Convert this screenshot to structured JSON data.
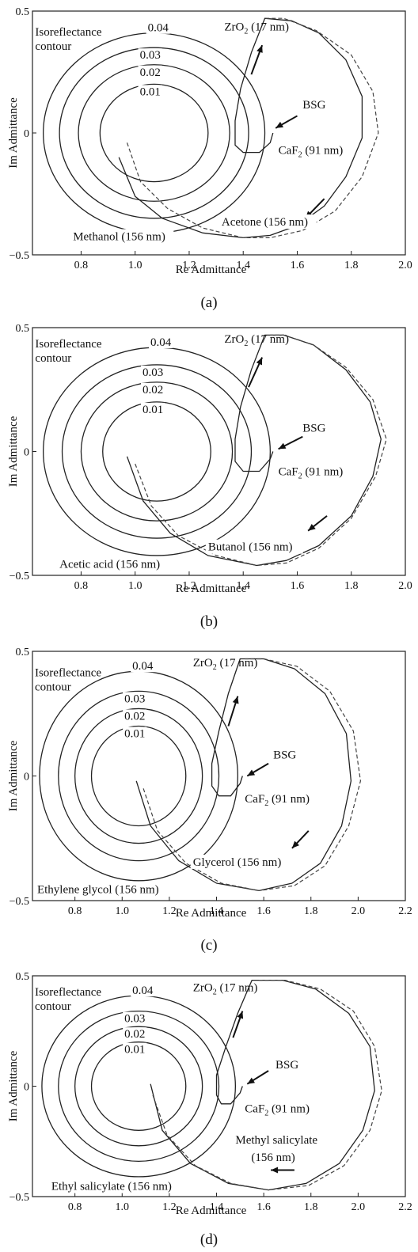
{
  "chart_data": [
    {
      "type": "line",
      "caption": "(a)",
      "xlabel": "Re Admittance",
      "ylabel": "Im Admittance",
      "xlim": [
        0.62,
        2.0
      ],
      "ylim": [
        -0.5,
        0.5
      ],
      "xticks": [
        "0.8",
        "1.0",
        "1.2",
        "1.4",
        "1.6",
        "1.8",
        "2.0"
      ],
      "xtick_values": [
        0.8,
        1.0,
        1.2,
        1.4,
        1.6,
        1.8,
        2.0
      ],
      "yticks": [
        "0.5",
        "0",
        "−0.5"
      ],
      "ytick_values": [
        0.5,
        0,
        -0.5
      ],
      "contours": [
        {
          "label": "0.01",
          "center": [
            1.07,
            0
          ],
          "radius": 0.2
        },
        {
          "label": "0.02",
          "center": [
            1.07,
            0
          ],
          "radius": 0.28
        },
        {
          "label": "0.03",
          "center": [
            1.07,
            0
          ],
          "radius": 0.35
        },
        {
          "label": "0.04",
          "center": [
            1.07,
            0
          ],
          "radius": 0.41
        }
      ],
      "annotations": {
        "isoreflectance_1": "Isoreflectance",
        "isoreflectance_2": "contour",
        "zro2_main": "ZrO",
        "zro2_sub": "2",
        "zro2_rest": " (17 nm)",
        "bsg": "BSG",
        "caf2_main": "CaF",
        "caf2_sub": "2",
        "caf2_rest": " (91 nm)",
        "solvent_inner": "Methanol (156 nm)",
        "solvent_outer": "Acetone (156 nm)"
      },
      "series": [
        {
          "name": "Methanol (156 nm)",
          "style": "solid",
          "points": [
            [
              0.94,
              -0.1
            ],
            [
              1.0,
              -0.26
            ],
            [
              1.1,
              -0.35
            ],
            [
              1.25,
              -0.41
            ],
            [
              1.4,
              -0.43
            ],
            [
              1.5,
              -0.42
            ],
            [
              1.6,
              -0.38
            ],
            [
              1.7,
              -0.3
            ],
            [
              1.78,
              -0.18
            ],
            [
              1.84,
              -0.02
            ],
            [
              1.84,
              0.15
            ],
            [
              1.78,
              0.3
            ],
            [
              1.68,
              0.41
            ],
            [
              1.58,
              0.46
            ],
            [
              1.48,
              0.47
            ],
            [
              1.43,
              0.33
            ],
            [
              1.39,
              0.18
            ],
            [
              1.37,
              0.05
            ],
            [
              1.37,
              -0.05
            ],
            [
              1.4,
              -0.08
            ],
            [
              1.46,
              -0.08
            ],
            [
              1.5,
              -0.04
            ],
            [
              1.51,
              0.0
            ]
          ]
        },
        {
          "name": "Acetone (156 nm)",
          "style": "dashed",
          "points": [
            [
              0.97,
              -0.04
            ],
            [
              1.02,
              -0.2
            ],
            [
              1.12,
              -0.31
            ],
            [
              1.25,
              -0.39
            ],
            [
              1.4,
              -0.43
            ],
            [
              1.5,
              -0.43
            ],
            [
              1.62,
              -0.4
            ],
            [
              1.74,
              -0.32
            ],
            [
              1.84,
              -0.18
            ],
            [
              1.9,
              0.0
            ],
            [
              1.88,
              0.17
            ],
            [
              1.8,
              0.32
            ],
            [
              1.67,
              0.42
            ],
            [
              1.55,
              0.47
            ],
            [
              1.48,
              0.47
            ]
          ]
        }
      ]
    },
    {
      "type": "line",
      "caption": "(b)",
      "xlabel": "Re Admittance",
      "ylabel": "Im Admittance",
      "xlim": [
        0.62,
        2.0
      ],
      "ylim": [
        -0.5,
        0.5
      ],
      "xticks": [
        "0.8",
        "1.0",
        "1.2",
        "1.4",
        "1.6",
        "1.8",
        "2.0"
      ],
      "xtick_values": [
        0.8,
        1.0,
        1.2,
        1.4,
        1.6,
        1.8,
        2.0
      ],
      "yticks": [
        "0.5",
        "0",
        "−0.5"
      ],
      "ytick_values": [
        0.5,
        0,
        -0.5
      ],
      "contours": [
        {
          "label": "0.01",
          "center": [
            1.08,
            0
          ],
          "radius": 0.2
        },
        {
          "label": "0.02",
          "center": [
            1.08,
            0
          ],
          "radius": 0.28
        },
        {
          "label": "0.03",
          "center": [
            1.08,
            0
          ],
          "radius": 0.35
        },
        {
          "label": "0.04",
          "center": [
            1.08,
            0
          ],
          "radius": 0.42
        }
      ],
      "annotations": {
        "isoreflectance_1": "Isoreflectance",
        "isoreflectance_2": "contour",
        "zro2_main": "ZrO",
        "zro2_sub": "2",
        "zro2_rest": " (17 nm)",
        "bsg": "BSG",
        "caf2_main": "CaF",
        "caf2_sub": "2",
        "caf2_rest": " (91 nm)",
        "solvent_inner": "Acetic acid (156 nm)",
        "solvent_outer": "Butanol (156 nm)"
      },
      "series": [
        {
          "name": "Acetic acid (156 nm)",
          "style": "solid",
          "points": [
            [
              0.97,
              -0.02
            ],
            [
              1.03,
              -0.2
            ],
            [
              1.13,
              -0.33
            ],
            [
              1.27,
              -0.42
            ],
            [
              1.45,
              -0.46
            ],
            [
              1.56,
              -0.44
            ],
            [
              1.68,
              -0.38
            ],
            [
              1.8,
              -0.26
            ],
            [
              1.88,
              -0.1
            ],
            [
              1.91,
              0.05
            ],
            [
              1.87,
              0.2
            ],
            [
              1.78,
              0.33
            ],
            [
              1.66,
              0.43
            ],
            [
              1.55,
              0.47
            ],
            [
              1.48,
              0.47
            ],
            [
              1.43,
              0.33
            ],
            [
              1.39,
              0.18
            ],
            [
              1.37,
              0.05
            ],
            [
              1.37,
              -0.04
            ],
            [
              1.4,
              -0.08
            ],
            [
              1.46,
              -0.08
            ],
            [
              1.5,
              -0.03
            ],
            [
              1.51,
              0.0
            ]
          ]
        },
        {
          "name": "Butanol (156 nm)",
          "style": "dashed",
          "points": [
            [
              1.0,
              -0.05
            ],
            [
              1.06,
              -0.22
            ],
            [
              1.16,
              -0.34
            ],
            [
              1.3,
              -0.42
            ],
            [
              1.45,
              -0.46
            ],
            [
              1.56,
              -0.45
            ],
            [
              1.68,
              -0.39
            ],
            [
              1.8,
              -0.27
            ],
            [
              1.89,
              -0.1
            ],
            [
              1.93,
              0.05
            ],
            [
              1.88,
              0.21
            ],
            [
              1.78,
              0.34
            ],
            [
              1.66,
              0.43
            ],
            [
              1.55,
              0.47
            ],
            [
              1.5,
              0.47
            ]
          ]
        }
      ]
    },
    {
      "type": "line",
      "caption": "(c)",
      "xlabel": "Re Admittance",
      "ylabel": "Im Admittance",
      "xlim": [
        0.62,
        2.2
      ],
      "ylim": [
        -0.5,
        0.5
      ],
      "xticks": [
        "0.8",
        "1.0",
        "1.2",
        "1.4",
        "1.6",
        "1.8",
        "2.0",
        "2.2"
      ],
      "xtick_values": [
        0.8,
        1.0,
        1.2,
        1.4,
        1.6,
        1.8,
        2.0,
        2.2
      ],
      "yticks": [
        "0.5",
        "0",
        "−0.5"
      ],
      "ytick_values": [
        0.5,
        0,
        -0.5
      ],
      "contours": [
        {
          "label": "0.01",
          "center": [
            1.07,
            0
          ],
          "radius": 0.2
        },
        {
          "label": "0.02",
          "center": [
            1.07,
            0
          ],
          "radius": 0.27
        },
        {
          "label": "0.03",
          "center": [
            1.07,
            0
          ],
          "radius": 0.34
        },
        {
          "label": "0.04",
          "center": [
            1.07,
            0
          ],
          "radius": 0.42
        }
      ],
      "annotations": {
        "isoreflectance_1": "Isoreflectance",
        "isoreflectance_2": "contour",
        "zro2_main": "ZrO",
        "zro2_sub": "2",
        "zro2_rest": " (17 nm)",
        "bsg": "BSG",
        "caf2_main": "CaF",
        "caf2_sub": "2",
        "caf2_rest": " (91 nm)",
        "solvent_inner": "Ethylene glycol (156 nm)",
        "solvent_outer": "Glycerol (156 nm)"
      },
      "series": [
        {
          "name": "Ethylene glycol (156 nm)",
          "style": "solid",
          "points": [
            [
              1.06,
              -0.02
            ],
            [
              1.12,
              -0.2
            ],
            [
              1.24,
              -0.34
            ],
            [
              1.4,
              -0.43
            ],
            [
              1.58,
              -0.46
            ],
            [
              1.72,
              -0.43
            ],
            [
              1.84,
              -0.35
            ],
            [
              1.93,
              -0.2
            ],
            [
              1.97,
              -0.02
            ],
            [
              1.95,
              0.17
            ],
            [
              1.86,
              0.33
            ],
            [
              1.73,
              0.43
            ],
            [
              1.6,
              0.47
            ],
            [
              1.5,
              0.47
            ],
            [
              1.45,
              0.33
            ],
            [
              1.41,
              0.18
            ],
            [
              1.38,
              0.05
            ],
            [
              1.38,
              -0.04
            ],
            [
              1.41,
              -0.08
            ],
            [
              1.46,
              -0.08
            ],
            [
              1.5,
              -0.03
            ],
            [
              1.51,
              0.0
            ]
          ]
        },
        {
          "name": "Glycerol (156 nm)",
          "style": "dashed",
          "points": [
            [
              1.09,
              -0.05
            ],
            [
              1.15,
              -0.22
            ],
            [
              1.27,
              -0.35
            ],
            [
              1.42,
              -0.43
            ],
            [
              1.58,
              -0.46
            ],
            [
              1.73,
              -0.44
            ],
            [
              1.86,
              -0.36
            ],
            [
              1.96,
              -0.2
            ],
            [
              2.01,
              -0.02
            ],
            [
              1.98,
              0.18
            ],
            [
              1.88,
              0.34
            ],
            [
              1.74,
              0.44
            ],
            [
              1.6,
              0.47
            ],
            [
              1.52,
              0.47
            ]
          ]
        }
      ]
    },
    {
      "type": "line",
      "caption": "(d)",
      "xlabel": "Re Admittance",
      "ylabel": "Im Admittance",
      "xlim": [
        0.62,
        2.2
      ],
      "ylim": [
        -0.5,
        0.5
      ],
      "xticks": [
        "0.8",
        "1.0",
        "1.2",
        "1.4",
        "1.6",
        "1.8",
        "2.0",
        "2.2"
      ],
      "xtick_values": [
        0.8,
        1.0,
        1.2,
        1.4,
        1.6,
        1.8,
        2.0,
        2.2
      ],
      "yticks": [
        "0.5",
        "0",
        "−0.5"
      ],
      "ytick_values": [
        0.5,
        0,
        -0.5
      ],
      "contours": [
        {
          "label": "0.01",
          "center": [
            1.07,
            0
          ],
          "radius": 0.2
        },
        {
          "label": "0.02",
          "center": [
            1.07,
            0
          ],
          "radius": 0.27
        },
        {
          "label": "0.03",
          "center": [
            1.07,
            0
          ],
          "radius": 0.34
        },
        {
          "label": "0.04",
          "center": [
            1.07,
            0
          ],
          "radius": 0.41
        }
      ],
      "annotations": {
        "isoreflectance_1": "Isoreflectance",
        "isoreflectance_2": "contour",
        "zro2_main": "ZrO",
        "zro2_sub": "2",
        "zro2_rest": " (17 nm)",
        "bsg": "BSG",
        "caf2_main": "CaF",
        "caf2_sub": "2",
        "caf2_rest": " (91 nm)",
        "solvent_inner": "Ethyl salicylate (156 nm)",
        "solvent_outer_1": "Methyl salicylate",
        "solvent_outer_2": "(156 nm)"
      },
      "series": [
        {
          "name": "Ethyl salicylate (156 nm)",
          "style": "solid",
          "points": [
            [
              1.12,
              0.01
            ],
            [
              1.17,
              -0.2
            ],
            [
              1.29,
              -0.35
            ],
            [
              1.45,
              -0.44
            ],
            [
              1.62,
              -0.47
            ],
            [
              1.78,
              -0.44
            ],
            [
              1.92,
              -0.35
            ],
            [
              2.02,
              -0.2
            ],
            [
              2.07,
              -0.02
            ],
            [
              2.05,
              0.18
            ],
            [
              1.96,
              0.33
            ],
            [
              1.82,
              0.44
            ],
            [
              1.68,
              0.48
            ],
            [
              1.55,
              0.48
            ],
            [
              1.49,
              0.33
            ],
            [
              1.44,
              0.18
            ],
            [
              1.4,
              0.05
            ],
            [
              1.4,
              -0.04
            ],
            [
              1.42,
              -0.08
            ],
            [
              1.46,
              -0.08
            ],
            [
              1.5,
              -0.03
            ],
            [
              1.51,
              0.0
            ]
          ]
        },
        {
          "name": "Methyl salicylate (156 nm)",
          "style": "dashed",
          "points": [
            [
              1.13,
              -0.04
            ],
            [
              1.19,
              -0.22
            ],
            [
              1.31,
              -0.36
            ],
            [
              1.46,
              -0.44
            ],
            [
              1.62,
              -0.47
            ],
            [
              1.79,
              -0.45
            ],
            [
              1.94,
              -0.36
            ],
            [
              2.05,
              -0.2
            ],
            [
              2.1,
              -0.02
            ],
            [
              2.07,
              0.18
            ],
            [
              1.98,
              0.34
            ],
            [
              1.84,
              0.44
            ],
            [
              1.69,
              0.48
            ],
            [
              1.58,
              0.48
            ]
          ]
        }
      ]
    }
  ]
}
